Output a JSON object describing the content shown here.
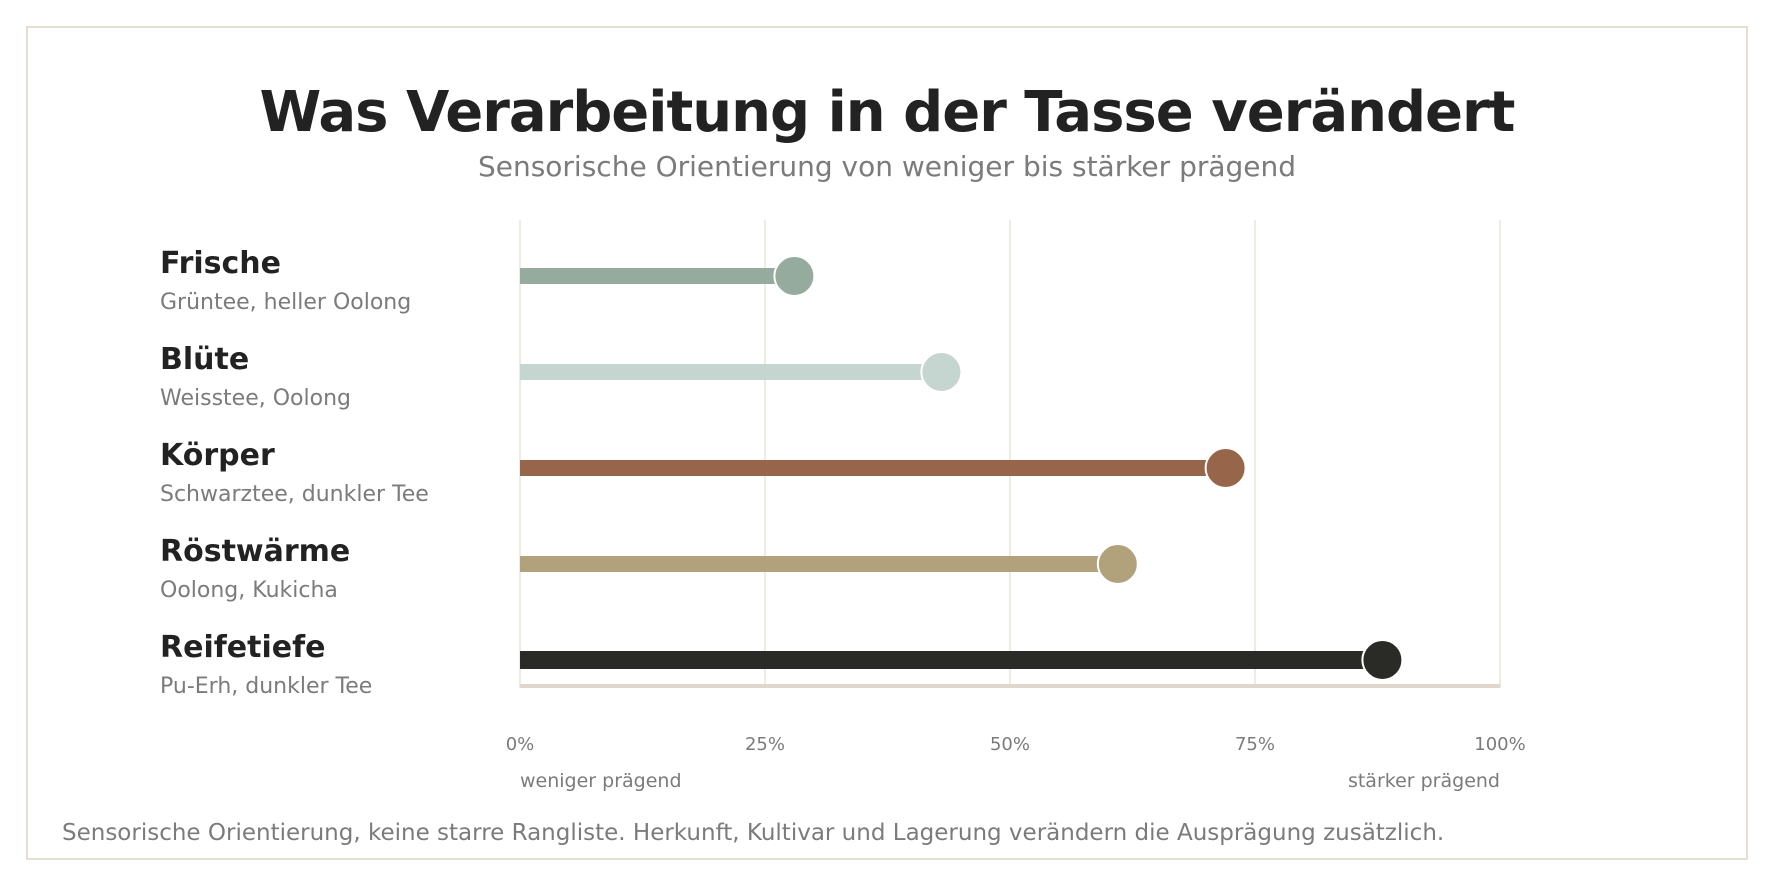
{
  "chart_data": {
    "type": "bar",
    "title": "Was Verarbeitung in der Tasse verändert",
    "subtitle": "Sensorische Orientierung von weniger bis stärker prägend",
    "categories": [
      "Frische",
      "Blüte",
      "Körper",
      "Röstwärme",
      "Reifetiefe"
    ],
    "category_sublabels": [
      "Grüntee, heller Oolong",
      "Weisstee, Oolong",
      "Schwarztee, dunkler Tee",
      "Oolong, Kukicha",
      "Pu-Erh, dunkler Tee"
    ],
    "values": [
      28,
      43,
      72,
      61,
      88
    ],
    "colors": [
      "#94ab9e",
      "#c5d5cf",
      "#97654a",
      "#b2a27c",
      "#2a2a26"
    ],
    "xlim": [
      0,
      100
    ],
    "x_ticks": [
      "0%",
      "25%",
      "50%",
      "75%",
      "100%"
    ],
    "x_tick_values": [
      0,
      25,
      50,
      75,
      100
    ],
    "x_min_label": "weniger prägend",
    "x_max_label": "stärker prägend",
    "grid": true,
    "orientation": "horizontal",
    "footnote": "Sensorische Orientierung, keine starre Rangliste. Herkunft, Kultivar und Lagerung verändern die Ausprägung zusätzlich."
  }
}
